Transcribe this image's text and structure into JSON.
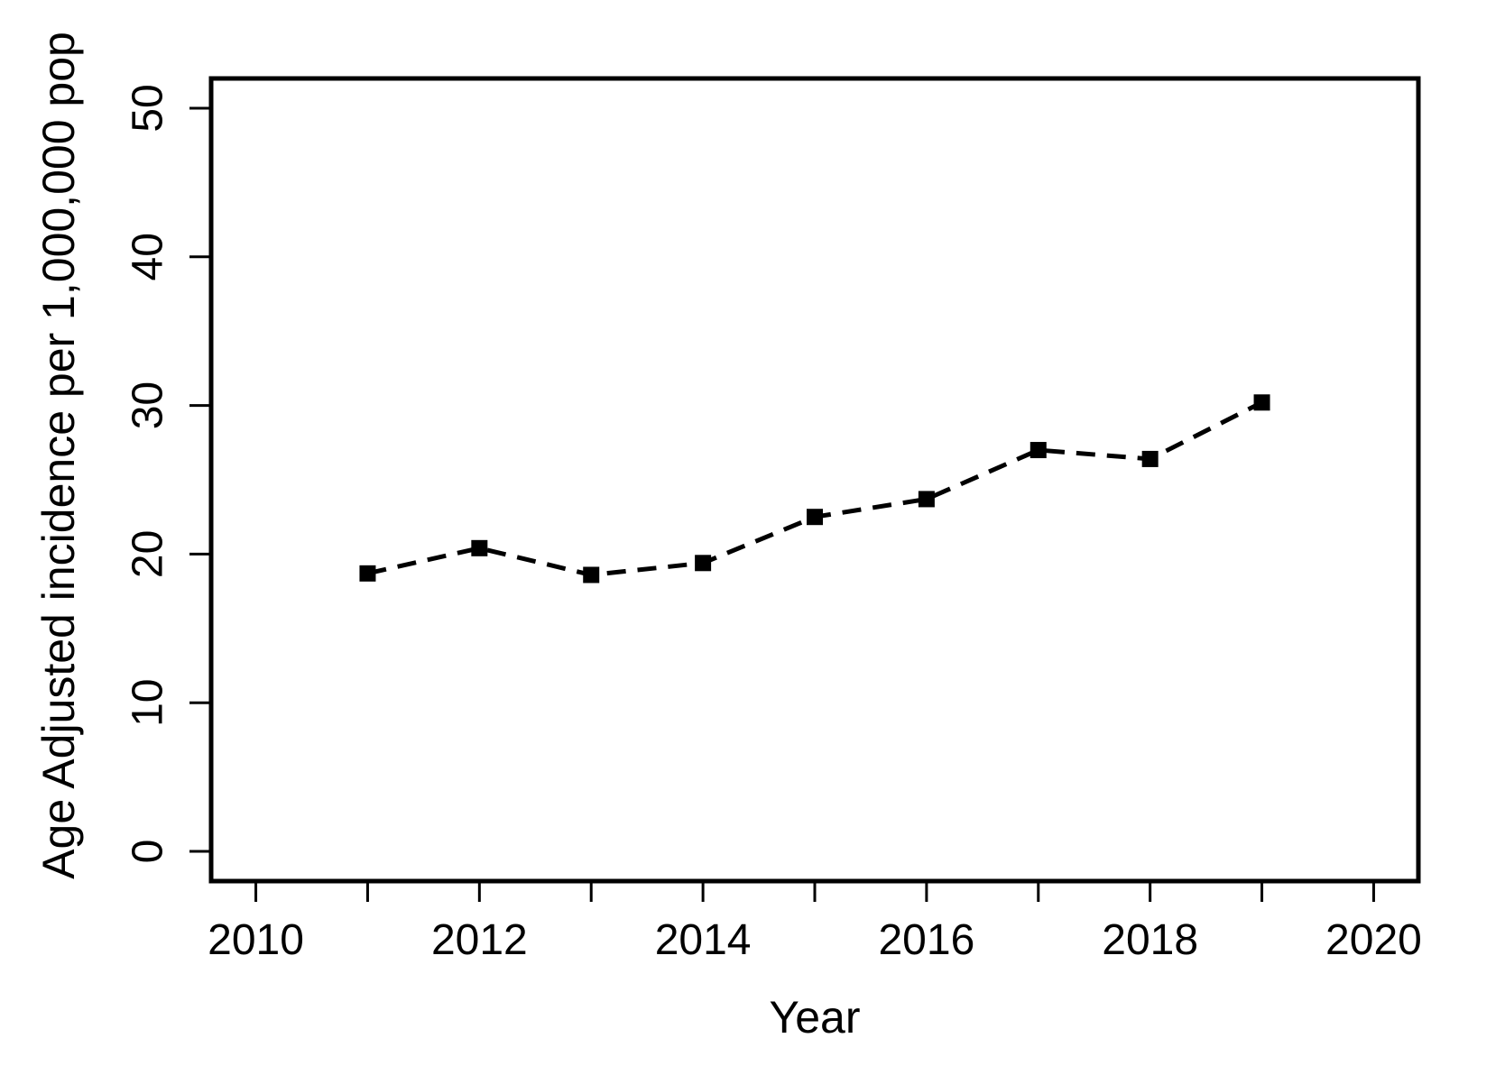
{
  "chart_data": {
    "type": "line",
    "title": "",
    "xlabel": "Year",
    "ylabel": "Age Adjusted incidence per 1,000,000 pop",
    "x": [
      2011,
      2012,
      2013,
      2014,
      2015,
      2016,
      2017,
      2018,
      2019
    ],
    "series": [
      {
        "name": "age-adjusted-incidence",
        "values": [
          18.7,
          20.4,
          18.6,
          19.4,
          22.5,
          23.7,
          27.0,
          26.4,
          30.2
        ],
        "line_style": "dashed",
        "marker": "filled-square",
        "color": "#000000"
      }
    ],
    "xlim": [
      2010,
      2020
    ],
    "ylim": [
      0,
      50
    ],
    "x_ticks": [
      2010,
      2011,
      2012,
      2013,
      2014,
      2015,
      2016,
      2017,
      2018,
      2019,
      2020
    ],
    "x_labeled_ticks": [
      2010,
      2012,
      2014,
      2016,
      2018,
      2020
    ],
    "y_ticks": [
      0,
      10,
      20,
      30,
      40,
      50
    ],
    "grid": false,
    "legend_position": "none",
    "background_color": "#ffffff",
    "axis_color": "#000000"
  }
}
